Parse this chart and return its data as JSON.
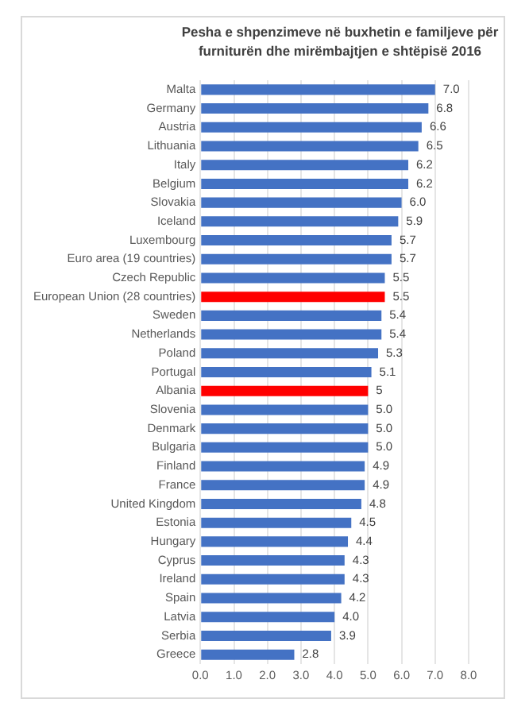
{
  "chart_data": {
    "type": "bar",
    "orientation": "horizontal",
    "title": "Pesha e shpenzimeve në buxhetin e familjeve për furniturën dhe mirëmbajtjen e shtëpisë  2016",
    "categories": [
      "Malta",
      "Germany",
      "Austria",
      "Lithuania",
      "Italy",
      "Belgium",
      "Slovakia",
      "Iceland",
      "Luxembourg",
      "Euro area (19 countries)",
      "Czech Republic",
      "European Union (28 countries)",
      "Sweden",
      "Netherlands",
      "Poland",
      "Portugal",
      "Albania",
      "Slovenia",
      "Denmark",
      "Bulgaria",
      "Finland",
      "France",
      "United Kingdom",
      "Estonia",
      "Hungary",
      "Cyprus",
      "Ireland",
      "Spain",
      "Latvia",
      "Serbia",
      "Greece"
    ],
    "values": [
      7.0,
      6.8,
      6.6,
      6.5,
      6.2,
      6.2,
      6.0,
      5.9,
      5.7,
      5.7,
      5.5,
      5.5,
      5.4,
      5.4,
      5.3,
      5.1,
      5,
      5.0,
      5.0,
      5.0,
      4.9,
      4.9,
      4.8,
      4.5,
      4.4,
      4.3,
      4.3,
      4.2,
      4.0,
      3.9,
      2.8
    ],
    "value_labels": [
      "7.0",
      "6.8",
      "6.6",
      "6.5",
      "6.2",
      "6.2",
      "6.0",
      "5.9",
      "5.7",
      "5.7",
      "5.5",
      "5.5",
      "5.4",
      "5.4",
      "5.3",
      "5.1",
      "5",
      "5.0",
      "5.0",
      "5.0",
      "4.9",
      "4.9",
      "4.8",
      "4.5",
      "4.4",
      "4.3",
      "4.3",
      "4.2",
      "4.0",
      "3.9",
      "2.8"
    ],
    "colors": [
      "#4472c4",
      "#4472c4",
      "#4472c4",
      "#4472c4",
      "#4472c4",
      "#4472c4",
      "#4472c4",
      "#4472c4",
      "#4472c4",
      "#4472c4",
      "#4472c4",
      "#ff0000",
      "#4472c4",
      "#4472c4",
      "#4472c4",
      "#4472c4",
      "#ff0000",
      "#4472c4",
      "#4472c4",
      "#4472c4",
      "#4472c4",
      "#4472c4",
      "#4472c4",
      "#4472c4",
      "#4472c4",
      "#4472c4",
      "#4472c4",
      "#4472c4",
      "#4472c4",
      "#4472c4",
      "#4472c4"
    ],
    "xlim": [
      0,
      8
    ],
    "xticks": [
      {
        "value": 0,
        "label": "0.0"
      },
      {
        "value": 1,
        "label": "1.0"
      },
      {
        "value": 2,
        "label": "2.0"
      },
      {
        "value": 3,
        "label": "3.0"
      },
      {
        "value": 4,
        "label": "4.0"
      },
      {
        "value": 5,
        "label": "5.0"
      },
      {
        "value": 6,
        "label": "6.0"
      },
      {
        "value": 7,
        "label": "7.0"
      },
      {
        "value": 8,
        "label": "8.0"
      }
    ],
    "grid": "x",
    "legend": false
  }
}
